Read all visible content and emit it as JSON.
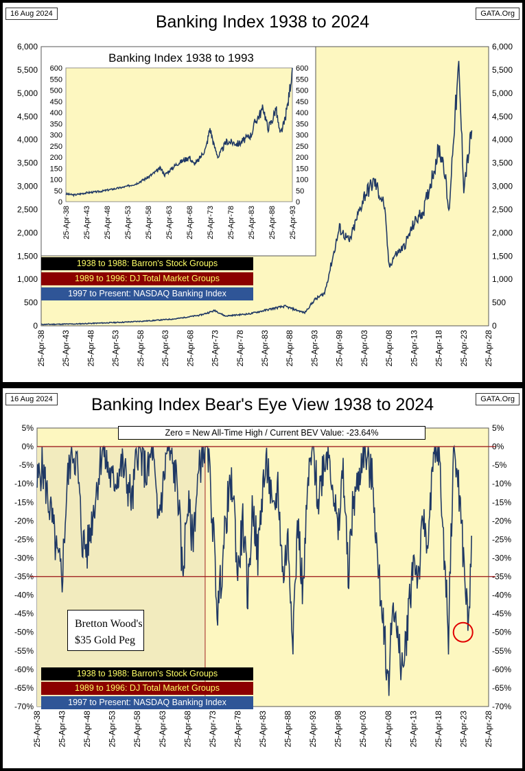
{
  "top_panel": {
    "date": "16 Aug 2024",
    "source": "GATA.Org",
    "title": "Banking Index 1938 to 2024",
    "legend": [
      "1938 to 1988: Barron's Stock Groups",
      "1989 to 1996: DJ Total Market Groups",
      "1997 to Present: NASDAQ Banking Index"
    ]
  },
  "inset": {
    "title": "Banking Index 1938 to 1993"
  },
  "bottom_panel": {
    "date": "16 Aug 2024",
    "source": "GATA.Org",
    "title": "Banking Index Bear's Eye View 1938 to 2024",
    "bev_note": "Zero = New All-Time High / Current BEV Value:  -23.64%",
    "bretton_note_line1": "Bretton Wood's",
    "bretton_note_line2": "$35 Gold Peg",
    "legend": [
      "1938 to 1988: Barron's Stock Groups",
      "1989 to 1996: DJ Total Market Groups",
      "1997 to Present: NASDAQ Banking Index"
    ]
  },
  "colors": {
    "plot_bg": "#fdf7c0",
    "shaded_bg": "#f2ebbe",
    "line": "#1f3864",
    "ref_line": "#a02020",
    "circle": "#e00000"
  },
  "chart_data": [
    {
      "type": "line",
      "title": "Banking Index 1938 to 2024",
      "ylim": [
        0,
        6000
      ],
      "y_ticks": [
        0,
        500,
        1000,
        1500,
        2000,
        2500,
        3000,
        3500,
        4000,
        4500,
        5000,
        5500,
        6000
      ],
      "y_tick_labels": [
        "0",
        "500",
        "1,000",
        "1,500",
        "2,000",
        "2,500",
        "3,000",
        "3,500",
        "4,000",
        "4,500",
        "5,000",
        "5,500",
        "6,000"
      ],
      "x_range": [
        1938,
        2028
      ],
      "x_tick_labels": [
        "25-Apr-38",
        "25-Apr-43",
        "25-Apr-48",
        "25-Apr-53",
        "25-Apr-58",
        "25-Apr-63",
        "25-Apr-68",
        "25-Apr-73",
        "25-Apr-78",
        "25-Apr-83",
        "25-Apr-88",
        "25-Apr-93",
        "25-Apr-98",
        "25-Apr-03",
        "25-Apr-08",
        "25-Apr-13",
        "25-Apr-18",
        "25-Apr-23",
        "25-Apr-28"
      ],
      "x": [
        1938,
        1945,
        1950,
        1955,
        1960,
        1965,
        1970,
        1973,
        1975,
        1980,
        1985,
        1987,
        1989,
        1991,
        1993,
        1995,
        1998,
        2000,
        2003,
        2005,
        2007,
        2008,
        2009,
        2011,
        2013,
        2015,
        2018,
        2019,
        2020,
        2021,
        2022,
        2023,
        2024,
        2024.6
      ],
      "y": [
        30,
        40,
        60,
        80,
        110,
        150,
        230,
        330,
        210,
        260,
        380,
        420,
        350,
        280,
        560,
        700,
        2100,
        1800,
        2800,
        3100,
        2600,
        1250,
        1500,
        1700,
        2200,
        2500,
        3800,
        3500,
        2400,
        4200,
        5500,
        3000,
        3700,
        4200
      ]
    },
    {
      "type": "line",
      "title": "Banking Index 1938 to 1993",
      "ylim": [
        0,
        600
      ],
      "y_ticks": [
        0,
        50,
        100,
        150,
        200,
        250,
        300,
        350,
        400,
        450,
        500,
        550,
        600
      ],
      "y_tick_labels": [
        "0",
        "50",
        "100",
        "150",
        "200",
        "250",
        "300",
        "350",
        "400",
        "450",
        "500",
        "550",
        "600"
      ],
      "x_range": [
        1938,
        1993
      ],
      "x_tick_labels": [
        "25-Apr-38",
        "25-Apr-43",
        "25-Apr-48",
        "25-Apr-53",
        "25-Apr-58",
        "25-Apr-63",
        "25-Apr-68",
        "25-Apr-73",
        "25-Apr-78",
        "25-Apr-83",
        "25-Apr-88",
        "25-Apr-93"
      ],
      "x": [
        1938,
        1940,
        1943,
        1946,
        1949,
        1952,
        1955,
        1958,
        1961,
        1962,
        1965,
        1968,
        1969,
        1970,
        1972,
        1973,
        1974,
        1975,
        1977,
        1980,
        1983,
        1984,
        1986,
        1987,
        1988,
        1989,
        1990,
        1991,
        1992,
        1993
      ],
      "y": [
        35,
        30,
        40,
        45,
        55,
        65,
        80,
        110,
        150,
        120,
        170,
        200,
        170,
        180,
        240,
        330,
        250,
        200,
        270,
        260,
        300,
        360,
        420,
        330,
        360,
        420,
        300,
        350,
        450,
        600
      ]
    },
    {
      "type": "line",
      "title": "Banking Index Bear's Eye View 1938 to 2024",
      "ylim": [
        -70,
        5
      ],
      "y_ticks": [
        5,
        0,
        -5,
        -10,
        -15,
        -20,
        -25,
        -30,
        -35,
        -40,
        -45,
        -50,
        -55,
        -60,
        -65,
        -70
      ],
      "y_tick_labels": [
        "5%",
        "0%",
        "-5%",
        "-10%",
        "-15%",
        "-20%",
        "-25%",
        "-30%",
        "-35%",
        "-40%",
        "-45%",
        "-50%",
        "-55%",
        "-60%",
        "-65%",
        "-70%"
      ],
      "reference_lines": [
        0,
        -35
      ],
      "shaded_range": [
        1938,
        1971.5
      ],
      "current_value": -23.64,
      "x_range": [
        1938,
        2028
      ],
      "x_tick_labels": [
        "25-Apr-38",
        "25-Apr-43",
        "25-Apr-48",
        "25-Apr-53",
        "25-Apr-58",
        "25-Apr-63",
        "25-Apr-68",
        "25-Apr-73",
        "25-Apr-78",
        "25-Apr-83",
        "25-Apr-88",
        "25-Apr-93",
        "25-Apr-98",
        "25-Apr-03",
        "25-Apr-08",
        "25-Apr-13",
        "25-Apr-18",
        "25-Apr-23",
        "25-Apr-28"
      ],
      "x": [
        1938,
        1939,
        1941,
        1942,
        1943,
        1944,
        1945,
        1946,
        1947,
        1948,
        1950,
        1951,
        1953,
        1955,
        1956,
        1957,
        1958,
        1960,
        1961,
        1962,
        1963,
        1964,
        1966,
        1967,
        1968,
        1969,
        1970,
        1971,
        1972,
        1973,
        1974,
        1975,
        1976,
        1977,
        1978,
        1979,
        1980,
        1981,
        1982,
        1983,
        1984,
        1985,
        1986,
        1987,
        1988,
        1989,
        1990,
        1991,
        1992,
        1993,
        1994,
        1995,
        1996,
        1997,
        1998,
        1999,
        2000,
        2001,
        2002,
        2003,
        2004,
        2005,
        2006,
        2007,
        2008,
        2009,
        2010,
        2011,
        2012,
        2013,
        2014,
        2015,
        2016,
        2017,
        2018,
        2019,
        2020,
        2021,
        2022,
        2023,
        2024,
        2024.6
      ],
      "y": [
        -10,
        -5,
        -20,
        -30,
        -35,
        -10,
        0,
        -5,
        -25,
        -28,
        -10,
        0,
        -10,
        -5,
        -10,
        -15,
        0,
        -8,
        0,
        -20,
        -12,
        0,
        -10,
        -35,
        -15,
        -25,
        -10,
        0,
        0,
        -20,
        -45,
        -30,
        -15,
        -10,
        -35,
        -20,
        -40,
        -15,
        -30,
        -10,
        -5,
        -20,
        -10,
        -35,
        -25,
        -50,
        -20,
        -40,
        -10,
        0,
        -15,
        -5,
        0,
        -10,
        -25,
        -5,
        -35,
        -15,
        -10,
        0,
        -5,
        -10,
        -35,
        -45,
        -65,
        -40,
        -55,
        -60,
        -45,
        -30,
        -35,
        -20,
        -25,
        -5,
        0,
        -25,
        -50,
        0,
        -10,
        -30,
        -50,
        -24
      ]
    }
  ]
}
